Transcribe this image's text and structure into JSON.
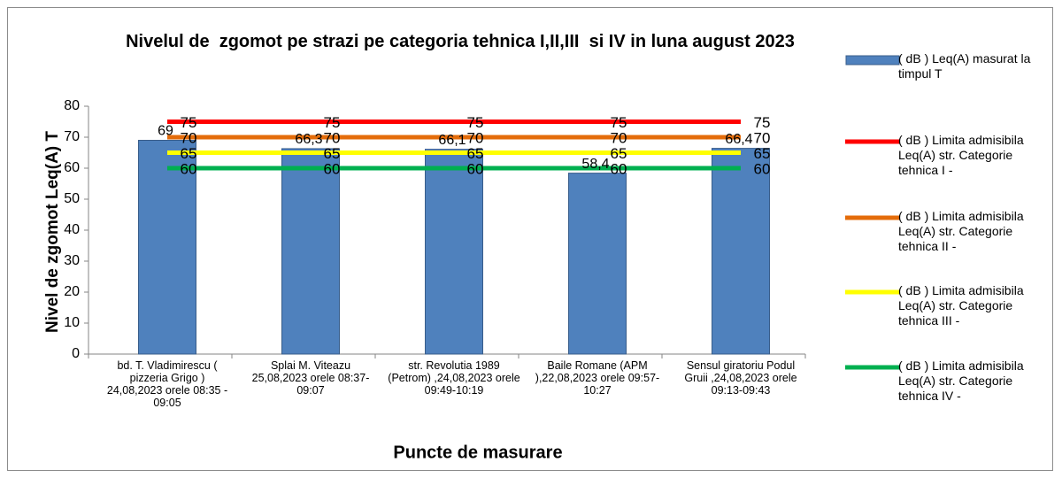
{
  "chart_data": {
    "type": "bar",
    "title": "Nivelul de  zgomot pe strazi pe categoria tehnica I,II,III  si IV in luna august 2023",
    "y_label": "Nivel de zgomot  Leq(A) T",
    "x_label": "Puncte de masurare",
    "categories": [
      "bd. T. Vladimirescu ( pizzeria Grigo ) 24,08,2023 orele 08:35 - 09:05",
      "Splai M. Viteazu 25,08,2023 orele 08:37-09:07",
      "str. Revolutia 1989 (Petrom) ,24,08,2023 orele 09:49-10:19",
      "Baile Romane (APM ),22,08,2023 orele 09:57-10:27",
      "Sensul giratoriu Podul Gruii ,24,08,2023 orele 09:13-09:43"
    ],
    "series": [
      {
        "name": "( dB ) Leq(A) masurat la timpul T",
        "type": "bar",
        "color": "#4f81bd",
        "values": [
          69,
          66.3,
          66.1,
          58.4,
          66.4
        ],
        "value_labels": [
          "69",
          "66,3",
          "66,1",
          "58,4",
          "66,4"
        ]
      },
      {
        "name": "( dB ) Limita admisibila Leq(A) str. Categorie tehnica I -",
        "type": "line",
        "color": "#ff0000",
        "values": [
          75,
          75,
          75,
          75,
          75
        ]
      },
      {
        "name": "( dB ) Limita admisibila Leq(A) str. Categorie tehnica II -",
        "type": "line",
        "color": "#e46c0a",
        "values": [
          70,
          70,
          70,
          70,
          70
        ]
      },
      {
        "name": "( dB ) Limita admisibila Leq(A) str. Categorie tehnica III -",
        "type": "line",
        "color": "#ffff00",
        "values": [
          65,
          65,
          65,
          65,
          65
        ]
      },
      {
        "name": "( dB ) Limita admisibila Leq(A) str. Categorie tehnica IV -",
        "type": "line",
        "color": "#00b050",
        "values": [
          60,
          60,
          60,
          60,
          60
        ]
      }
    ],
    "ylim": [
      0,
      80
    ],
    "yticks": [
      0,
      10,
      20,
      30,
      40,
      50,
      60,
      70,
      80
    ],
    "legend": "right"
  }
}
